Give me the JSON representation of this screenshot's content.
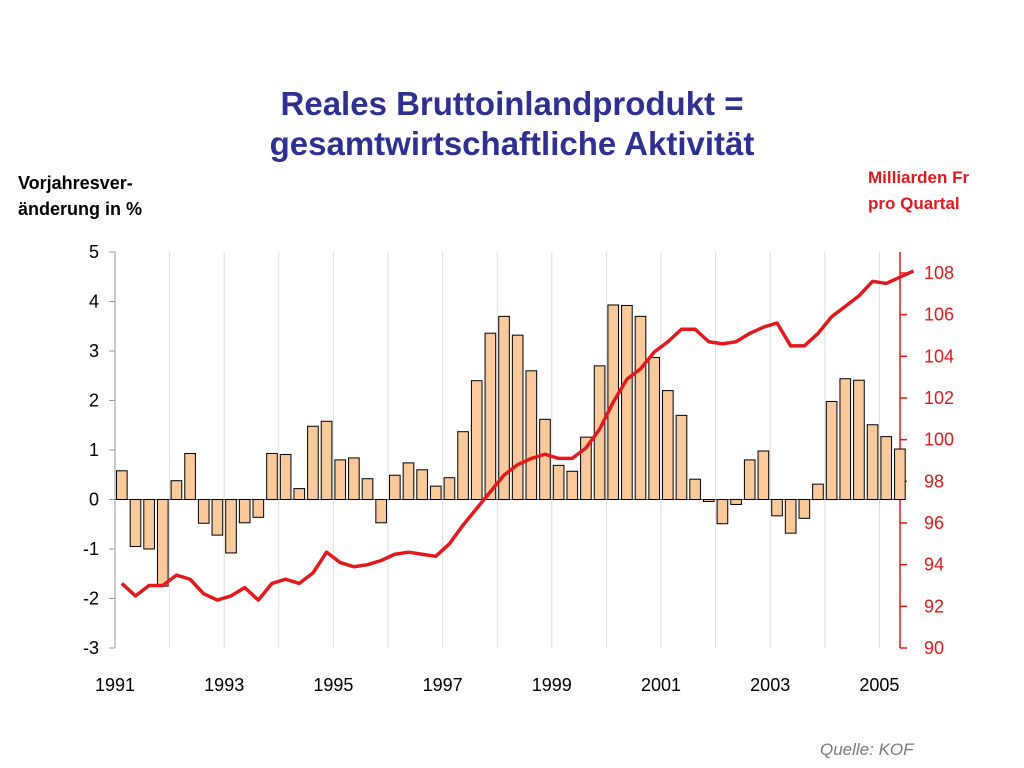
{
  "title_line1": "Reales Bruttoinlandprodukt =",
  "title_line2": "gesamtwirtschaftliche Aktivität",
  "left_axis_title_line1": "Vorjahresver-",
  "left_axis_title_line2": "änderung in %",
  "right_axis_title_line1": "Milliarden Fr",
  "right_axis_title_line2": "pro Quartal",
  "source": "Quelle: KOF",
  "chart_data": {
    "type": "bar+line",
    "x_tick_labels": [
      "1991",
      "1993",
      "1995",
      "1997",
      "1999",
      "2001",
      "2003",
      "2005"
    ],
    "left_axis": {
      "ylim": [
        -3,
        5
      ],
      "ticks": [
        "5",
        "4",
        "3",
        "2",
        "1",
        "0",
        "-1",
        "-2",
        "-3"
      ]
    },
    "right_axis": {
      "ylim": [
        90,
        109
      ],
      "ticks": [
        "108",
        "106",
        "104",
        "102",
        "100",
        "98",
        "96",
        "94",
        "92",
        "90"
      ]
    },
    "grid": "vertical, yearly",
    "bar_series": {
      "axis": "left",
      "color": "#f9c99b",
      "start": "1991Q1",
      "values": [
        0.58,
        -0.95,
        -1.0,
        -1.75,
        0.38,
        0.93,
        -0.48,
        -0.72,
        -1.08,
        -0.47,
        -0.36,
        0.93,
        0.91,
        0.22,
        1.48,
        1.58,
        0.8,
        0.84,
        0.42,
        -0.47,
        0.49,
        0.74,
        0.6,
        0.27,
        0.44,
        1.37,
        2.4,
        3.36,
        3.7,
        3.32,
        2.6,
        1.62,
        0.69,
        0.57,
        1.26,
        2.7,
        3.93,
        3.92,
        3.7,
        2.87,
        2.2,
        1.7,
        0.41,
        -0.04,
        -0.49,
        -0.1,
        0.8,
        0.98,
        -0.33,
        -0.68,
        -0.38,
        0.31,
        1.98,
        2.44,
        2.41,
        1.51,
        1.27,
        1.02
      ]
    },
    "line_series": {
      "axis": "right",
      "color": "#e3191b",
      "start": "1991Q1",
      "values": [
        93.1,
        92.5,
        93.0,
        93.0,
        93.5,
        93.3,
        92.6,
        92.3,
        92.5,
        92.9,
        92.3,
        93.1,
        93.3,
        93.1,
        93.6,
        94.6,
        94.1,
        93.9,
        94.0,
        94.2,
        94.5,
        94.6,
        94.5,
        94.4,
        95.0,
        95.9,
        96.7,
        97.5,
        98.3,
        98.8,
        99.1,
        99.3,
        99.1,
        99.1,
        99.6,
        100.5,
        101.8,
        102.9,
        103.4,
        104.2,
        104.7,
        105.3,
        105.3,
        104.7,
        104.6,
        104.7,
        105.1,
        105.4,
        105.6,
        104.5,
        104.5,
        105.1,
        105.9,
        106.4,
        106.9,
        107.6,
        107.5,
        107.8,
        108.1
      ]
    }
  }
}
